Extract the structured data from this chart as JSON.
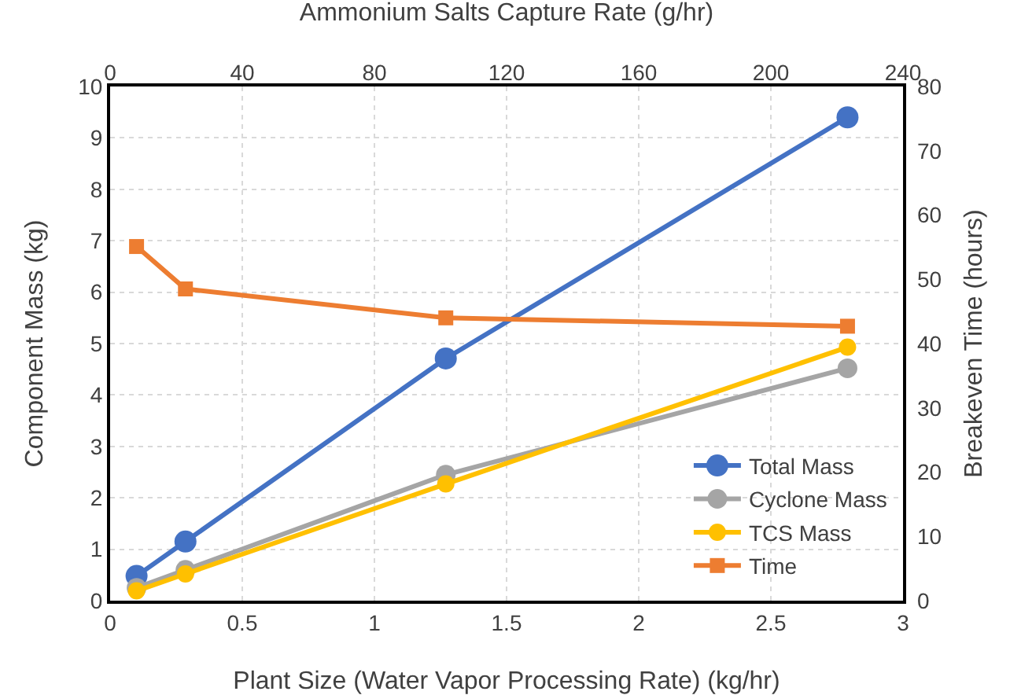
{
  "chart_data": {
    "type": "line",
    "xlabel": "Plant Size (Water Vapor Processing Rate) (kg/hr)",
    "ylabel": "Component Mass (kg)",
    "y2label": "Breakeven Time (hours)",
    "x2label": "Ammonium Salts Capture Rate (g/hr)",
    "x": [
      0.1,
      0.285,
      1.27,
      2.79
    ],
    "series": [
      {
        "name": "Total Mass",
        "color": "#4472c4",
        "marker": "circle",
        "values": [
          0.48,
          1.15,
          4.71,
          9.4
        ]
      },
      {
        "name": "Cyclone Mass",
        "color": "#a5a5a5",
        "marker": "circle",
        "values": [
          0.25,
          0.6,
          2.45,
          4.52
        ]
      },
      {
        "name": "TCS Mass",
        "color": "#ffc000",
        "marker": "circle",
        "values": [
          0.19,
          0.52,
          2.27,
          4.93
        ]
      },
      {
        "name": "Time",
        "color": "#ed7d31",
        "marker": "square",
        "axis": "y2",
        "values": [
          55.1,
          48.5,
          44,
          42.7
        ]
      }
    ],
    "xlim": [
      0,
      3
    ],
    "xticks": [
      0,
      0.5,
      1,
      1.5,
      2,
      2.5,
      3
    ],
    "x2lim": [
      0,
      240
    ],
    "x2ticks": [
      0,
      40,
      80,
      120,
      160,
      200,
      240
    ],
    "ylim": [
      0,
      10
    ],
    "yticks": [
      0,
      1,
      2,
      3,
      4,
      5,
      6,
      7,
      8,
      9,
      10
    ],
    "y2lim": [
      0,
      80
    ],
    "y2ticks": [
      0,
      10,
      20,
      30,
      40,
      50,
      60,
      70,
      80
    ],
    "grid": true,
    "legend": "bottom right",
    "line_style": "solid"
  }
}
